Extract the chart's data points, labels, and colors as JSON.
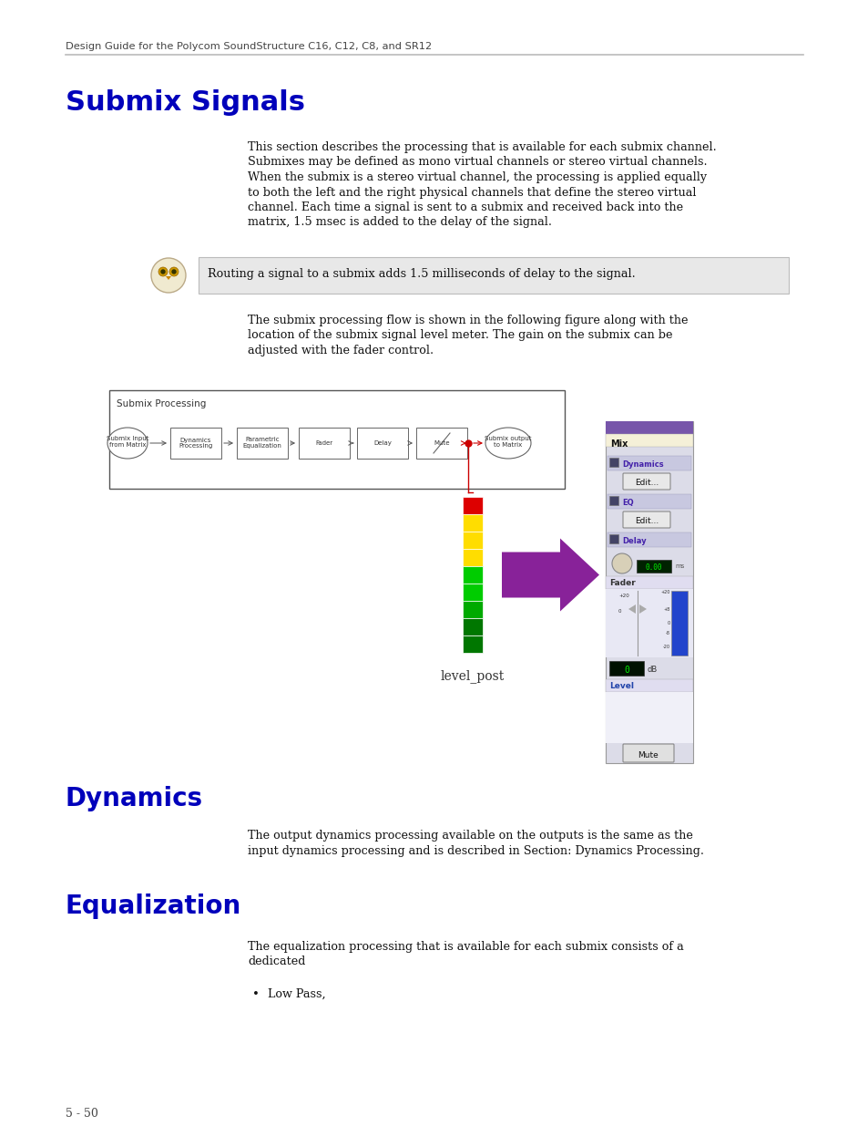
{
  "bg_color": "#ffffff",
  "header_text": "Design Guide for the Polycom SoundStructure C16, C12, C8, and SR12",
  "header_color": "#444444",
  "title1": "Submix Signals",
  "title_color": "#0000bb",
  "body1_lines": [
    "This section describes the processing that is available for each submix channel.",
    "Submixes may be defined as mono virtual channels or stereo virtual channels.",
    "When the submix is a stereo virtual channel, the processing is applied equally",
    "to both the left and the right physical channels that define the stereo virtual",
    "channel. Each time a signal is sent to a submix and received back into the",
    "matrix, 1.5 msec is added to the delay of the signal."
  ],
  "note_text": "Routing a signal to a submix adds 1.5 milliseconds of delay to the signal.",
  "note_bg": "#e8e8e8",
  "body2_lines": [
    "The submix processing flow is shown in the following figure along with the",
    "location of the submix signal level meter. The gain on the submix can be",
    "adjusted with the fader control."
  ],
  "diagram_label": "level_post",
  "title2": "Dynamics",
  "body3_lines": [
    "The output dynamics processing available on the outputs is the same as the",
    "input dynamics processing and is described in Section: Dynamics Processing."
  ],
  "title3": "Equalization",
  "body4_lines": [
    "The equalization processing that is available for each submix consists of a",
    "dedicated"
  ],
  "bullet1": "Low Pass,",
  "footer_text": "5 - 50",
  "panel_title_color": "#7755aa",
  "panel_bg": "#e8e8f0",
  "panel_header_bg": "#7755aa",
  "panel_mix_bg": "#f5f0d8",
  "panel_section_bg": "#d8d8e8",
  "panel_dyn_label_color": "#5533aa",
  "panel_level_label_color": "#3344aa"
}
